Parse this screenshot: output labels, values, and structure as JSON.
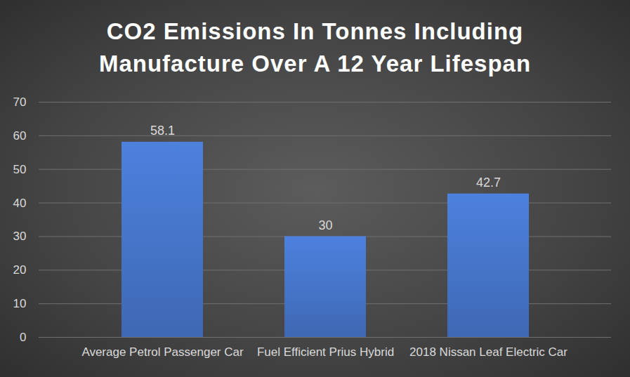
{
  "chart_data": {
    "type": "bar",
    "title": "CO2 Emissions In Tonnes Including Manufacture Over A 12 Year Lifespan",
    "categories": [
      "Average Petrol Passenger Car",
      "Fuel Efficient Prius Hybrid",
      "2018 Nissan Leaf Electric Car"
    ],
    "values": [
      58.1,
      30,
      42.7
    ],
    "color": "#4472c4",
    "ylim": [
      0,
      70
    ],
    "yticks": [
      0,
      10,
      20,
      30,
      40,
      50,
      60,
      70
    ],
    "grid": true,
    "data_labels": true
  }
}
